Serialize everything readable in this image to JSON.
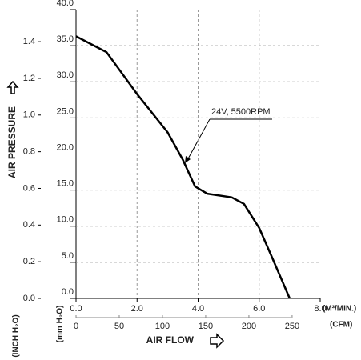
{
  "chart_data": {
    "type": "line",
    "x_label": "AIR FLOW",
    "y_label": "AIR PRESSURE",
    "x_unit": "(M³/MIN.)",
    "x2_unit": "(CFM)",
    "y_unit": "(mm H₂O)",
    "y2_unit": "(INCH H₂O)",
    "x": [
      0,
      1.0,
      2.0,
      3.0,
      3.5,
      3.9,
      4.3,
      5.1,
      5.5,
      6.0,
      6.4,
      7.0
    ],
    "series": [
      {
        "name": "24V, 5500RPM",
        "color": "#000000",
        "values": [
          36.3,
          34.1,
          28.3,
          23.0,
          19.2,
          15.5,
          14.5,
          14.0,
          13.1,
          9.75,
          5.9,
          0
        ]
      }
    ],
    "xlim": [
      0,
      8
    ],
    "xticks": [
      {
        "value": 0,
        "label": "0.0"
      },
      {
        "value": 2,
        "label": "2.0"
      },
      {
        "value": 4,
        "label": "4.0"
      },
      {
        "value": 6,
        "label": "6.0"
      },
      {
        "value": 8,
        "label": "8.0"
      }
    ],
    "x2lim": [
      0,
      282.5
    ],
    "x2ticks": [
      0,
      50,
      100,
      150,
      200,
      250
    ],
    "ylim": [
      0,
      40
    ],
    "yticks": [
      {
        "value": 0,
        "label": "0.0"
      },
      {
        "value": 5,
        "label": "5.0"
      },
      {
        "value": 10,
        "label": "10.0"
      },
      {
        "value": 15,
        "label": "15.0"
      },
      {
        "value": 20,
        "label": "20.0"
      },
      {
        "value": 25,
        "label": "25.0"
      },
      {
        "value": 30,
        "label": "30.0"
      },
      {
        "value": 35,
        "label": "35.0"
      },
      {
        "value": 40,
        "label": "40.0"
      }
    ],
    "y2lim": [
      0,
      1.575
    ],
    "y2ticks": [
      {
        "value": 0,
        "label": "0.0"
      },
      0.2,
      0.4,
      0.6,
      0.8,
      {
        "value": 1.0,
        "label": "1.0"
      },
      1.2,
      1.4
    ],
    "grid": true
  }
}
